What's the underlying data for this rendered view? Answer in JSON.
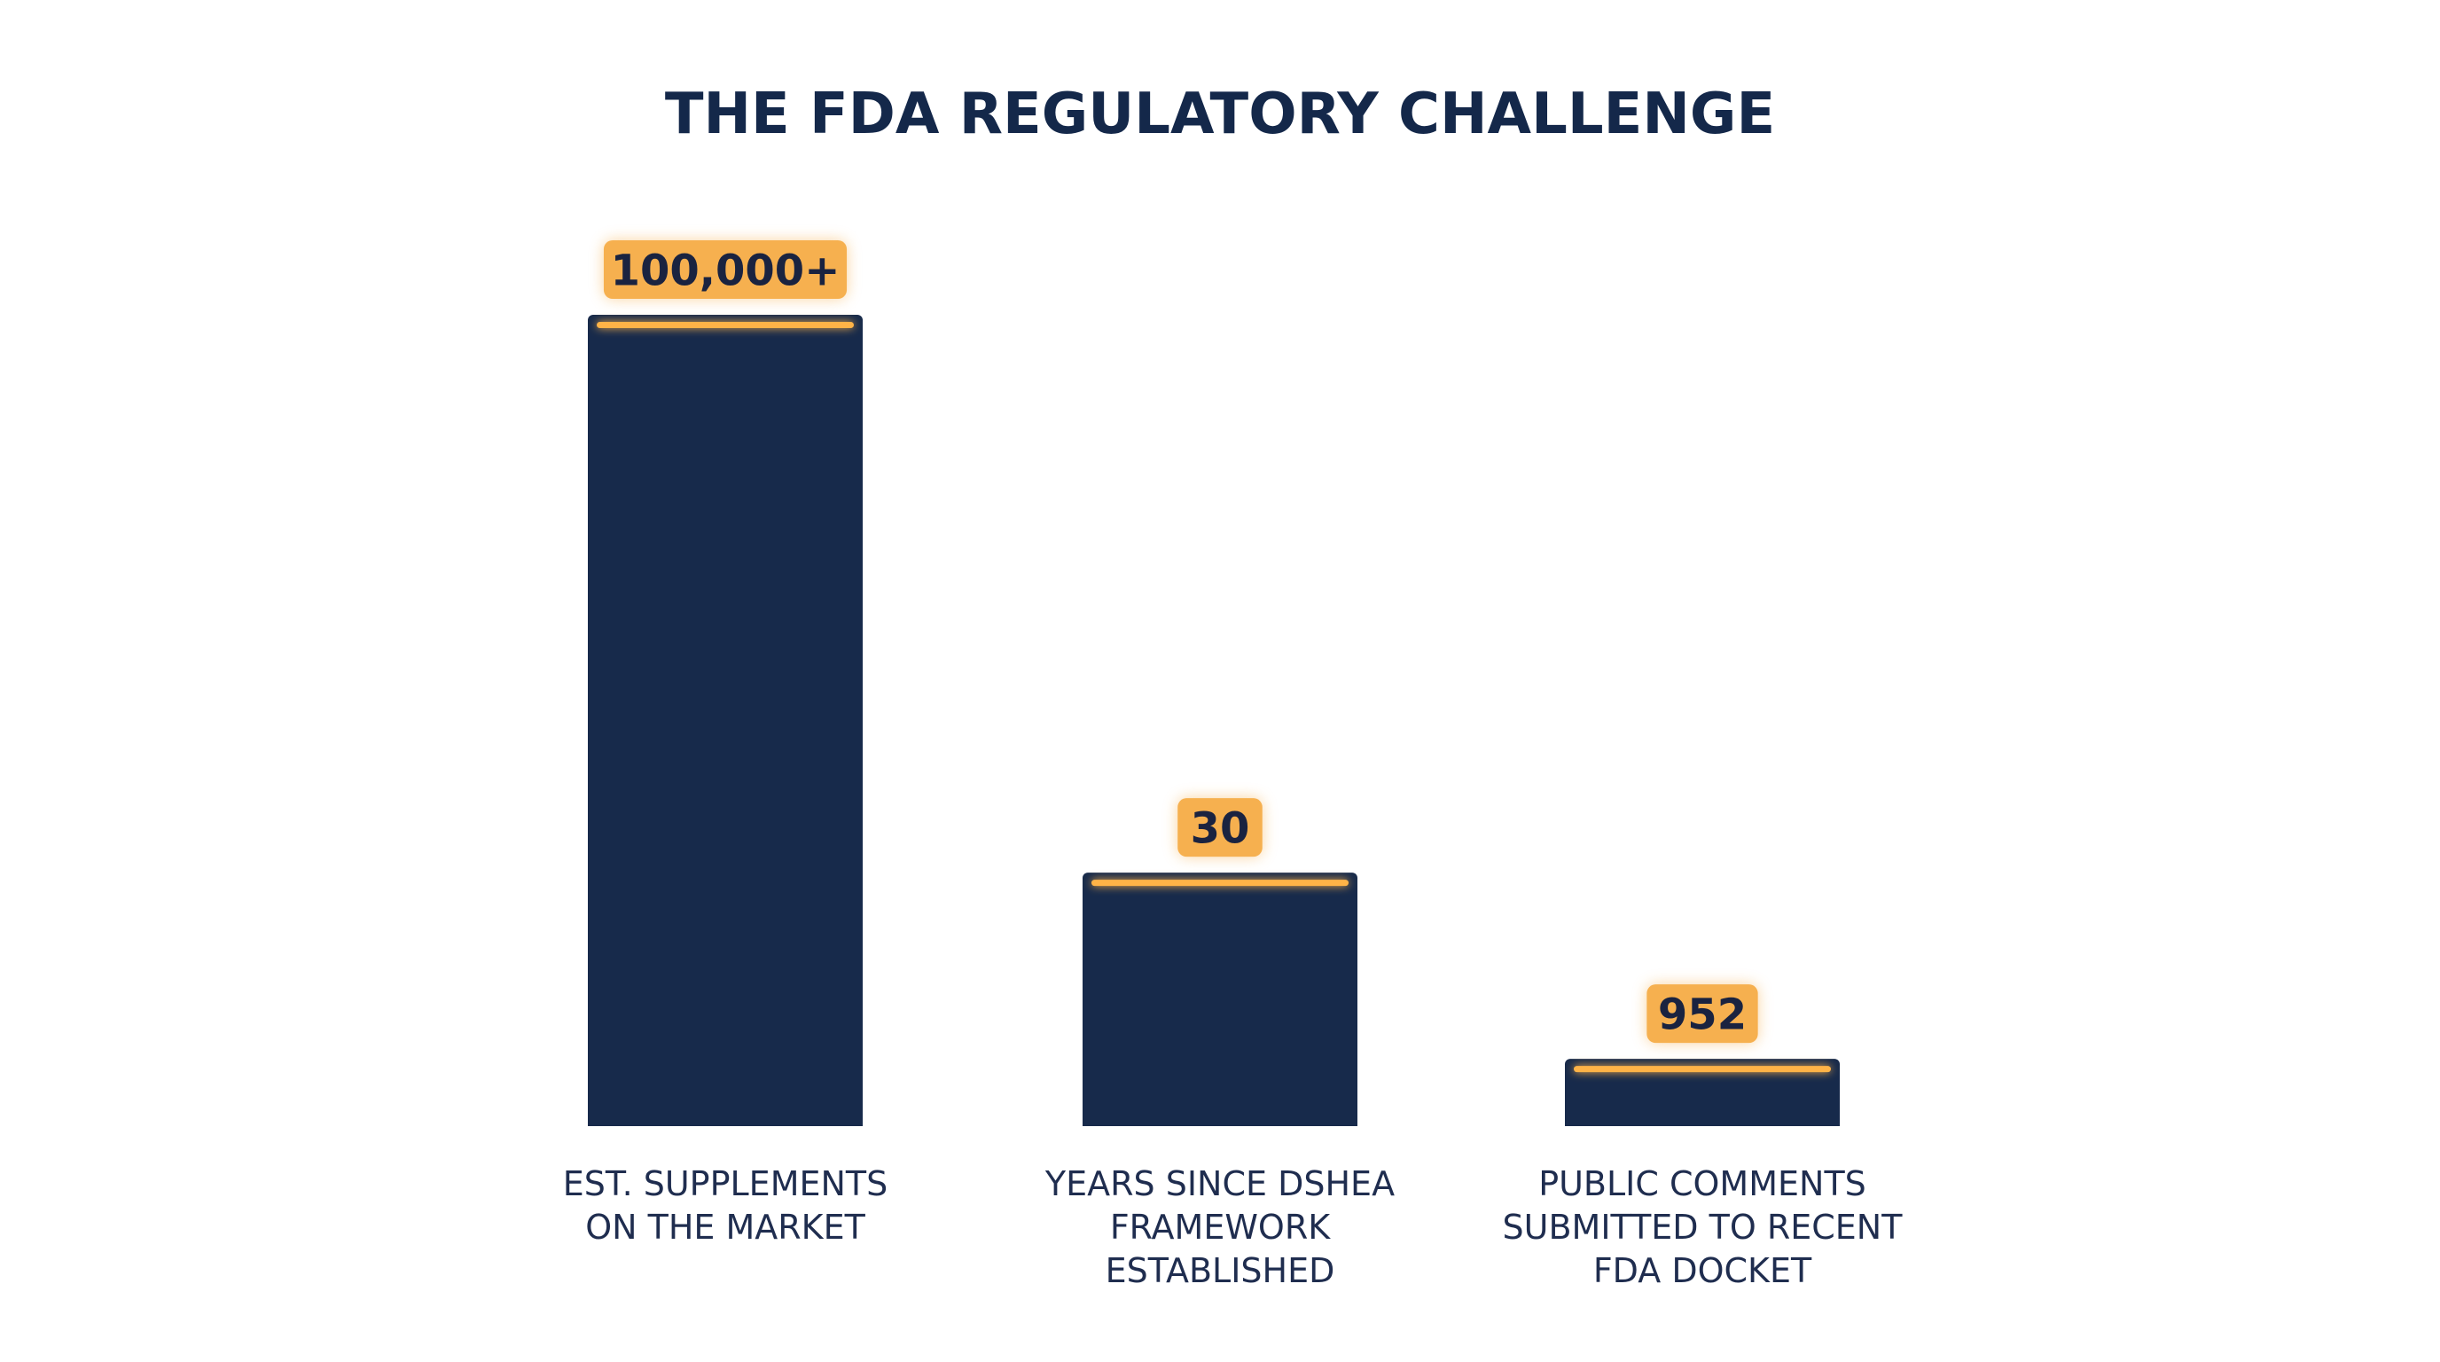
{
  "chart_data": {
    "type": "bar",
    "title": "THE FDA REGULATORY CHALLENGE",
    "categories": [
      [
        "EST. SUPPLEMENTS",
        "ON THE MARKET"
      ],
      [
        "YEARS SINCE DSHEA",
        "FRAMEWORK",
        "ESTABLISHED"
      ],
      [
        "PUBLIC COMMENTS",
        "SUBMITTED TO RECENT",
        "FDA DOCKET"
      ]
    ],
    "value_labels": [
      "100,000+",
      "30",
      "952"
    ],
    "relative_bar_height": [
      1.0,
      0.3124,
      0.0829
    ],
    "xlabel": "",
    "ylabel": "",
    "grid": false,
    "legend": "none",
    "colors": {
      "bar": "#172a4b",
      "accent": "#f6b04f",
      "accent_line": "#ffb347",
      "label_text": "#1a2340",
      "title_text": "#14284a",
      "category_text": "#1f2d4f",
      "background": "#ffffff"
    }
  }
}
